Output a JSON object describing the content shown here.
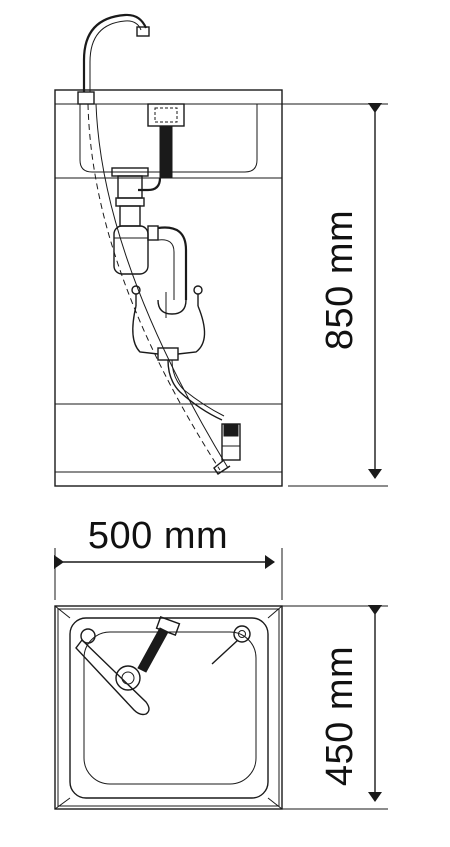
{
  "dimensions": {
    "height_label": "850 mm",
    "width_label": "500 mm",
    "depth_label": "450 mm"
  },
  "colors": {
    "line": "#1a1a1a",
    "background": "#ffffff"
  }
}
